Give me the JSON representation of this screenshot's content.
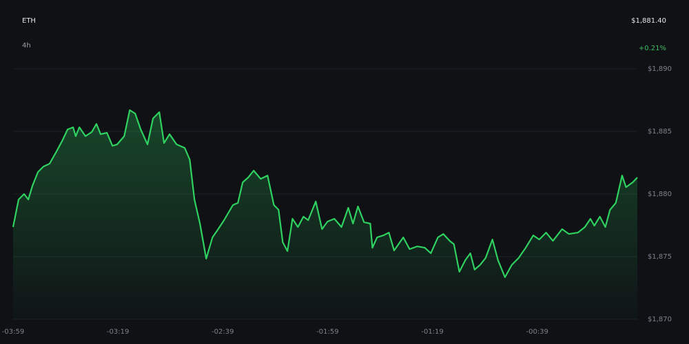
{
  "chart_data": {
    "type": "line",
    "title": "ETH",
    "subtitle": "4h",
    "price": "$1,881.40",
    "change": "+0.21%",
    "color": "#2fd160",
    "change_color": "#3fbf5f",
    "grid": true,
    "x": [
      -239,
      -236.9,
      -234.8,
      -233.2,
      -231.6,
      -229.5,
      -227.4,
      -225.1,
      -222.4,
      -220.3,
      -218.2,
      -216.1,
      -215.1,
      -213.7,
      -211.4,
      -209.0,
      -207.2,
      -205.6,
      -203.2,
      -201.1,
      -199.3,
      -196.6,
      -194.5,
      -192.4,
      -190.3,
      -187.7,
      -185.6,
      -183.2,
      -181.4,
      -179.3,
      -176.6,
      -173.5,
      -171.6,
      -169.8,
      -167.7,
      -165.3,
      -162.9,
      -161.1,
      -158.5,
      -155.1,
      -153.2,
      -151.4,
      -149.3,
      -147.2,
      -144.5,
      -141.9,
      -139.5,
      -137.7,
      -136.1,
      -134.3,
      -132.4,
      -130.3,
      -128.2,
      -126.4,
      -123.5,
      -121.1,
      -119.0,
      -116.4,
      -113.7,
      -111.1,
      -109.3,
      -107.4,
      -105.1,
      -102.7,
      -101.9,
      -100.1,
      -97.7,
      -95.6,
      -93.6,
      -90.1,
      -87.7,
      -84.8,
      -81.9,
      -79.6,
      -76.9,
      -74.8,
      -72.4,
      -70.8,
      -68.7,
      -66.4,
      -64.5,
      -62.9,
      -60.8,
      -58.7,
      -56.1,
      -54.0,
      -51.3,
      -48.7,
      -46.1,
      -43.4,
      -40.5,
      -38.2,
      -35.6,
      -33.0,
      -29.5,
      -26.9,
      -23.5,
      -20.8,
      -18.7,
      -17.2,
      -15.1,
      -13.0,
      -11.2,
      -9.0,
      -6.6,
      -5.1,
      -2.6,
      -0.8
    ],
    "series": [
      {
        "name": "ETH",
        "color": "#2fd160",
        "values": [
          1877.36,
          1879.56,
          1880.0,
          1879.56,
          1880.66,
          1881.76,
          1882.2,
          1882.42,
          1883.41,
          1884.23,
          1885.16,
          1885.33,
          1884.62,
          1885.33,
          1884.62,
          1884.95,
          1885.6,
          1884.78,
          1884.89,
          1883.85,
          1883.96,
          1884.62,
          1886.7,
          1886.43,
          1885.16,
          1883.96,
          1886.04,
          1886.54,
          1884.07,
          1884.78,
          1883.96,
          1883.68,
          1882.75,
          1879.56,
          1877.64,
          1874.84,
          1876.54,
          1877.09,
          1877.91,
          1879.12,
          1879.29,
          1880.93,
          1881.32,
          1881.87,
          1881.21,
          1881.48,
          1879.12,
          1878.74,
          1876.15,
          1875.44,
          1878.02,
          1877.36,
          1878.19,
          1877.91,
          1879.4,
          1877.2,
          1877.8,
          1878.02,
          1877.36,
          1878.9,
          1877.64,
          1879.01,
          1877.75,
          1877.64,
          1875.71,
          1876.54,
          1876.7,
          1876.92,
          1875.49,
          1876.54,
          1875.6,
          1875.82,
          1875.71,
          1875.27,
          1876.54,
          1876.81,
          1876.26,
          1875.99,
          1873.79,
          1874.73,
          1875.27,
          1873.96,
          1874.34,
          1874.89,
          1876.37,
          1874.73,
          1873.35,
          1874.34,
          1874.89,
          1875.71,
          1876.7,
          1876.37,
          1876.92,
          1876.26,
          1877.2,
          1876.81,
          1876.92,
          1877.36,
          1878.02,
          1877.47,
          1878.19,
          1877.36,
          1878.74,
          1879.29,
          1881.48,
          1880.55,
          1880.93,
          1881.32
        ]
      }
    ],
    "xlim": [
      -239,
      -0.8
    ],
    "xticks": [
      {
        "value": -239,
        "label": "-03:59"
      },
      {
        "value": -199,
        "label": "-03:19"
      },
      {
        "value": -159,
        "label": "-02:39"
      },
      {
        "value": -119,
        "label": "-01:59"
      },
      {
        "value": -79,
        "label": "-01:19"
      },
      {
        "value": -39,
        "label": "-00:39"
      }
    ],
    "ylim": [
      1870,
      1890
    ],
    "yticks": [
      {
        "value": 1870,
        "label": "$1,870"
      },
      {
        "value": 1875,
        "label": "$1,875"
      },
      {
        "value": 1880,
        "label": "$1,880"
      },
      {
        "value": 1885,
        "label": "$1,885"
      },
      {
        "value": 1890,
        "label": "$1,890"
      }
    ]
  }
}
